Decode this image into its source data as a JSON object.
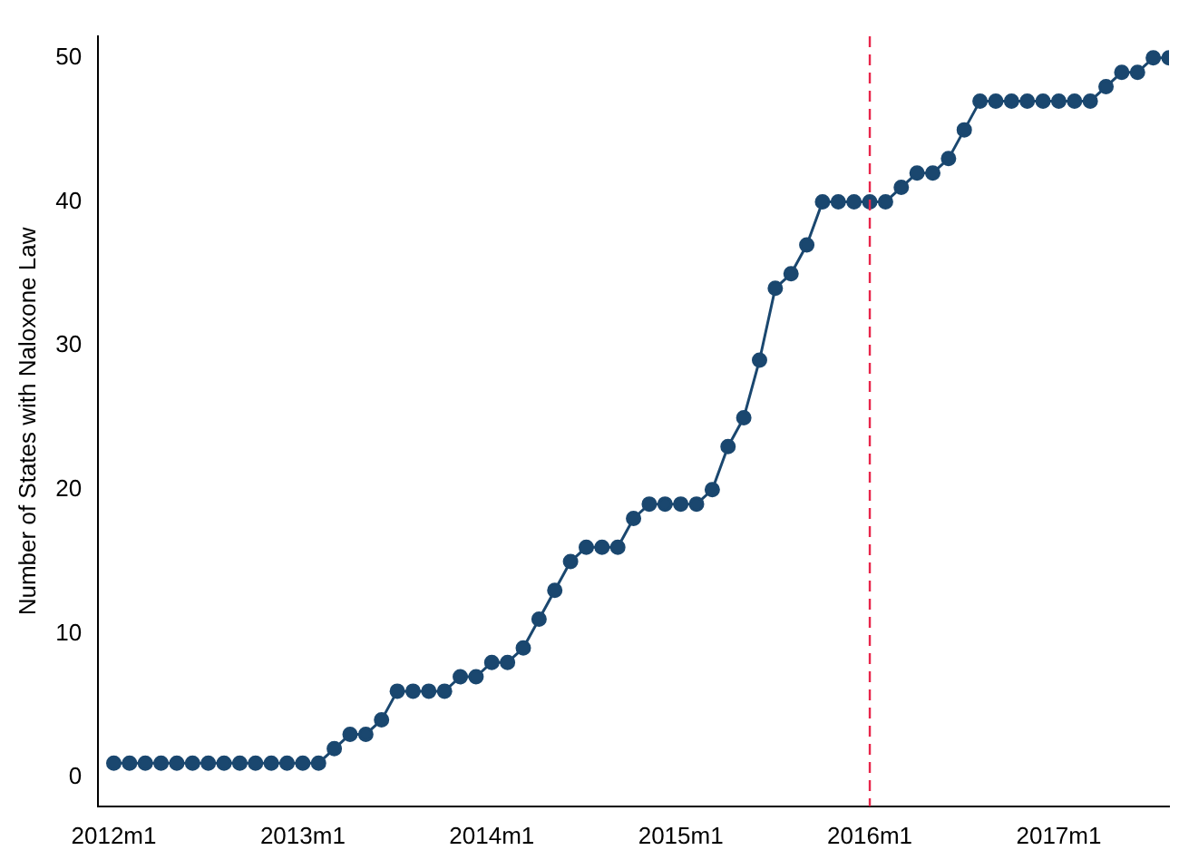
{
  "chart_data": {
    "type": "line",
    "ylabel": "Number of States with Naloxone Law",
    "x": [
      "2012-01",
      "2012-02",
      "2012-03",
      "2012-04",
      "2012-05",
      "2012-06",
      "2012-07",
      "2012-08",
      "2012-09",
      "2012-10",
      "2012-11",
      "2012-12",
      "2013-01",
      "2013-02",
      "2013-03",
      "2013-04",
      "2013-05",
      "2013-06",
      "2013-07",
      "2013-08",
      "2013-09",
      "2013-10",
      "2013-11",
      "2013-12",
      "2014-01",
      "2014-02",
      "2014-03",
      "2014-04",
      "2014-05",
      "2014-06",
      "2014-07",
      "2014-08",
      "2014-09",
      "2014-10",
      "2014-11",
      "2014-12",
      "2015-01",
      "2015-02",
      "2015-03",
      "2015-04",
      "2015-05",
      "2015-06",
      "2015-07",
      "2015-08",
      "2015-09",
      "2015-10",
      "2015-11",
      "2015-12",
      "2016-01",
      "2016-02",
      "2016-03",
      "2016-04",
      "2016-05",
      "2016-06",
      "2016-07",
      "2016-08",
      "2016-09",
      "2016-10",
      "2016-11",
      "2016-12",
      "2017-01",
      "2017-02",
      "2017-03",
      "2017-04",
      "2017-05",
      "2017-06",
      "2017-07",
      "2017-08"
    ],
    "series": [
      {
        "color": "#1a476f",
        "values": [
          1,
          1,
          1,
          1,
          1,
          1,
          1,
          1,
          1,
          1,
          1,
          1,
          1,
          1,
          2,
          3,
          3,
          4,
          6,
          6,
          6,
          6,
          7,
          7,
          8,
          8,
          9,
          11,
          13,
          15,
          16,
          16,
          16,
          18,
          19,
          19,
          19,
          19,
          20,
          23,
          25,
          29,
          34,
          35,
          37,
          40,
          40,
          40,
          40,
          40,
          41,
          42,
          42,
          43,
          45,
          47,
          47,
          47,
          47,
          47,
          47,
          47,
          47,
          48,
          49,
          49,
          50,
          50
        ]
      }
    ],
    "xlim": [
      "2011-12",
      "2017-08"
    ],
    "xticks": [
      {
        "value": "2012-01",
        "label": "2012m1"
      },
      {
        "value": "2013-01",
        "label": "2013m1"
      },
      {
        "value": "2014-01",
        "label": "2014m1"
      },
      {
        "value": "2015-01",
        "label": "2015m1"
      },
      {
        "value": "2016-01",
        "label": "2016m1"
      },
      {
        "value": "2017-01",
        "label": "2017m1"
      }
    ],
    "ylim": [
      -2,
      51.5
    ],
    "yticks": [
      0,
      10,
      20,
      30,
      40,
      50
    ],
    "ref_lines": [
      {
        "axis": "x",
        "value": "2016-01",
        "color": "#e8254a",
        "line_style": "dashed"
      }
    ],
    "marker": "circle",
    "line_style": "solid",
    "grid": false,
    "legend": false
  }
}
